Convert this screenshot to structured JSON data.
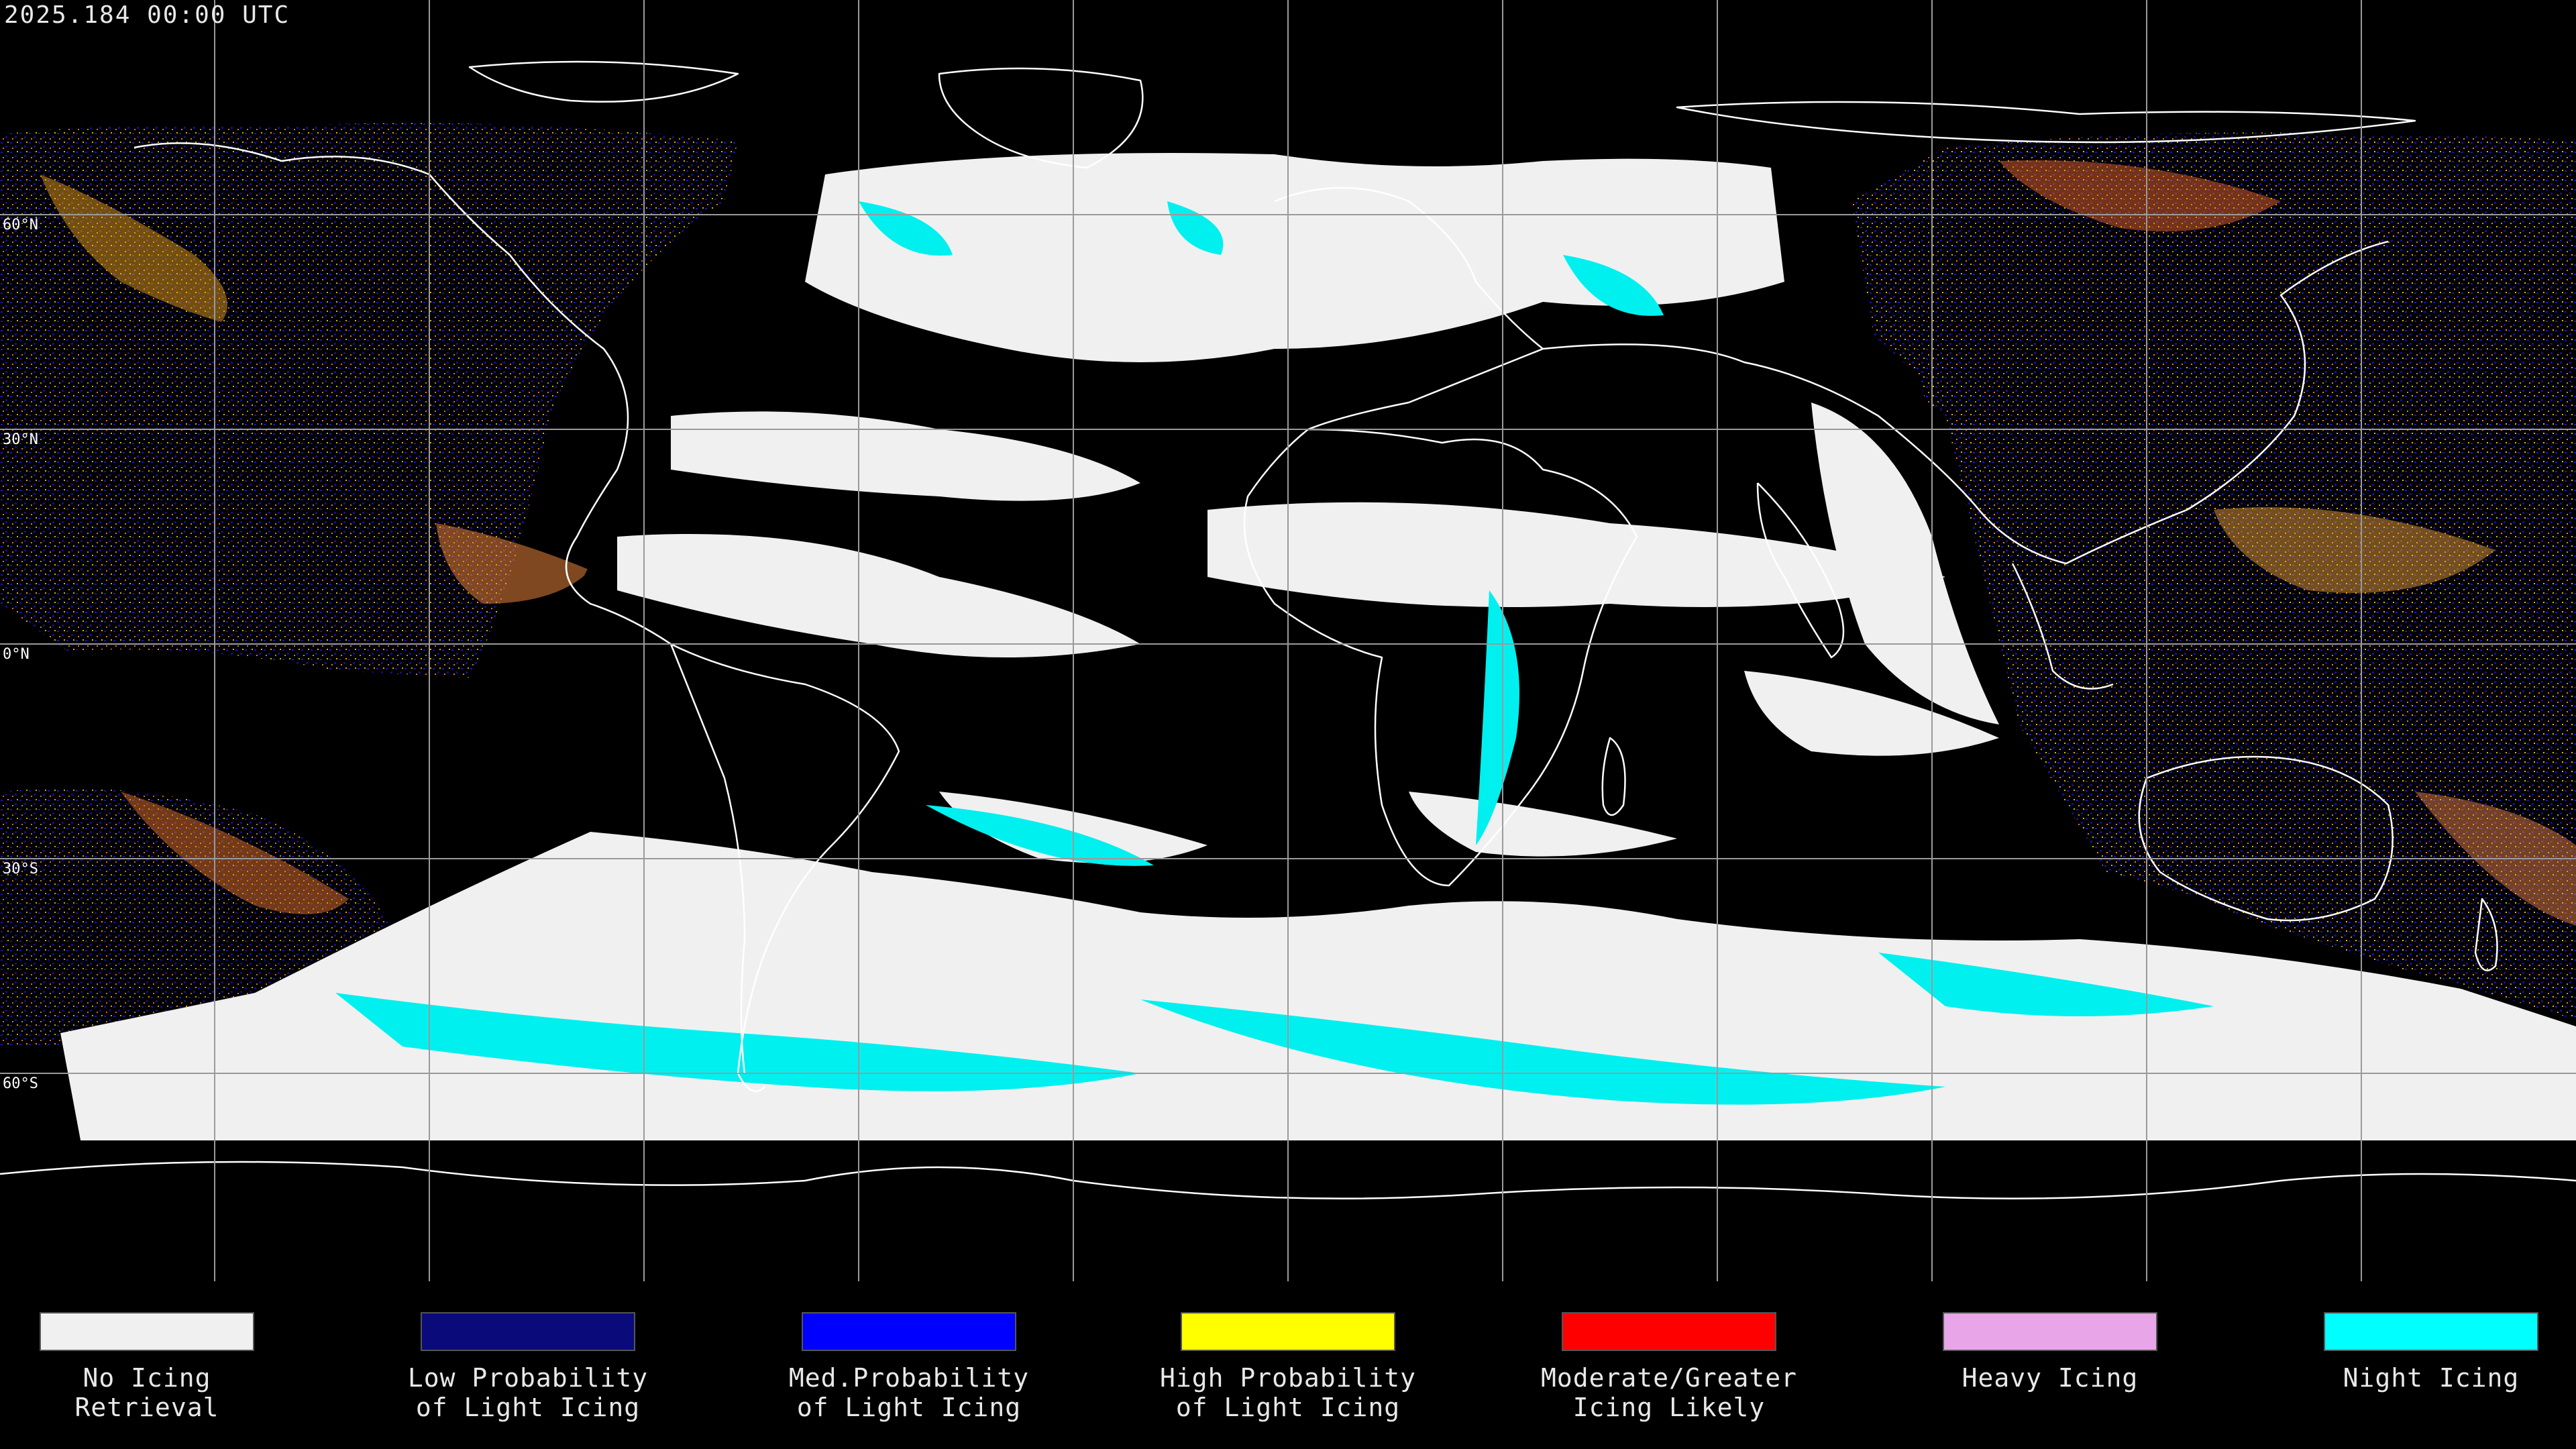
{
  "header": {
    "timestamp": "2025.184 00:00 UTC"
  },
  "map": {
    "projection": "equirectangular",
    "background_color": "#000000",
    "gridline_color": "#aaaaaa",
    "coastline_color": "#ffffff",
    "grid_lon_step_deg": 20,
    "grid_lat_step_deg": 20,
    "latitude_labels": [
      "60°N",
      "30°N",
      "0°N",
      "30°S",
      "60°S"
    ]
  },
  "legend": {
    "items": [
      {
        "label": "No Icing\nRetrieval",
        "color": "#f0f0f0"
      },
      {
        "label": "Low Probability\nof Light Icing",
        "color": "#0a0a7a"
      },
      {
        "label": "Med.Probability\nof Light Icing",
        "color": "#0000ff"
      },
      {
        "label": "High Probability\nof Light Icing",
        "color": "#ffff00"
      },
      {
        "label": "Moderate/Greater\nIcing Likely",
        "color": "#ff0000"
      },
      {
        "label": "Heavy Icing",
        "color": "#e8a6e8"
      },
      {
        "label": "Night Icing",
        "color": "#00ffff"
      }
    ]
  }
}
